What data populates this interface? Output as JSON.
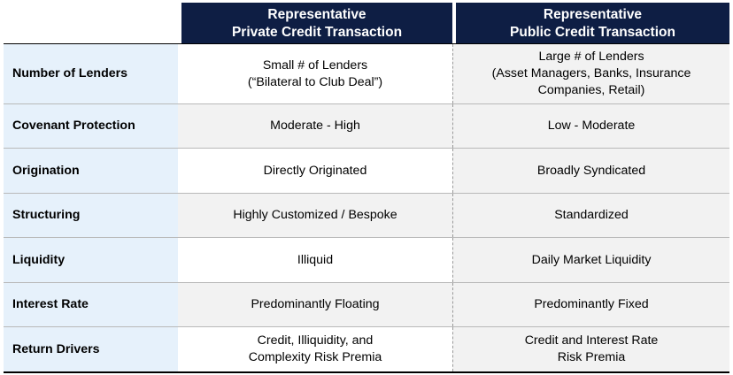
{
  "header": {
    "col1": {
      "line1": "Representative",
      "line2": "Private Credit Transaction"
    },
    "col2": {
      "line1": "Representative",
      "line2": "Public Credit Transaction"
    }
  },
  "rows": [
    {
      "label": "Number of Lenders",
      "private": [
        "Small # of Lenders",
        "(“Bilateral to Club Deal”)"
      ],
      "public": [
        "Large # of Lenders",
        "(Asset Managers, Banks, Insurance",
        "Companies, Retail)"
      ]
    },
    {
      "label": "Covenant Protection",
      "private": [
        "Moderate - High"
      ],
      "public": [
        "Low - Moderate"
      ]
    },
    {
      "label": "Origination",
      "private": [
        "Directly Originated"
      ],
      "public": [
        "Broadly Syndicated"
      ]
    },
    {
      "label": "Structuring",
      "private": [
        "Highly Customized / Bespoke"
      ],
      "public": [
        "Standardized"
      ]
    },
    {
      "label": "Liquidity",
      "private": [
        "Illiquid"
      ],
      "public": [
        "Daily Market Liquidity"
      ]
    },
    {
      "label": "Interest Rate",
      "private": [
        "Predominantly Floating"
      ],
      "public": [
        "Predominantly Fixed"
      ]
    },
    {
      "label": "Return Drivers",
      "private": [
        "Credit, Illiquidity, and",
        "Complexity Risk Premia"
      ],
      "public": [
        "Credit and Interest Rate",
        "Risk Premia"
      ]
    }
  ],
  "colors": {
    "header_bg": "#0e1e44",
    "label_bg": "#e6f1fb",
    "shade_bg": "#f2f2f2"
  }
}
